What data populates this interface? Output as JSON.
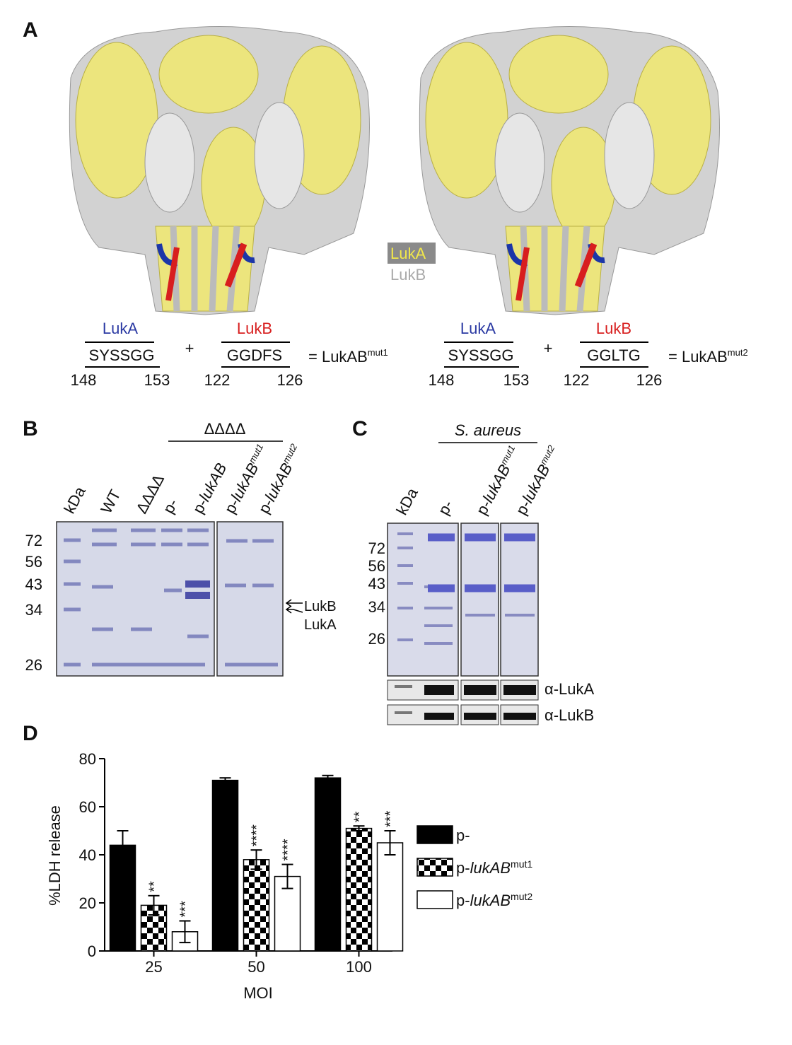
{
  "panel_a": {
    "label": "A",
    "legend": [
      "LukA",
      "LukB"
    ],
    "left": {
      "luka": "LukA",
      "luka_seq": "SYSSGG",
      "luka_start": "148",
      "luka_end": "153",
      "plus": "+",
      "lukb": "LukB",
      "lukb_seq": "GGDFS",
      "lukb_start": "122",
      "lukb_end": "126",
      "result": "= LukAB",
      "result_sup": "mut1"
    },
    "right": {
      "luka": "LukA",
      "luka_seq": "SYSSGG",
      "luka_start": "148",
      "luka_end": "153",
      "plus": "+",
      "lukb": "LukB",
      "lukb_seq": "GGLTG",
      "lukb_start": "122",
      "lukb_end": "126",
      "result": "= LukAB",
      "result_sup": "mut2"
    }
  },
  "panel_b": {
    "label": "B",
    "group_label": "ΔΔΔΔ",
    "lanes": [
      {
        "text": "kDa"
      },
      {
        "text": "WT"
      },
      {
        "text": "ΔΔΔΔ"
      },
      {
        "text": "p-"
      },
      {
        "text": "p-",
        "italic": "lukAB"
      },
      {
        "text": "p-",
        "italic": "lukAB",
        "sup": "mut1"
      },
      {
        "text": "p-",
        "italic": "lukAB",
        "sup": "mut2"
      }
    ],
    "markers": [
      "72",
      "56",
      "43",
      "34",
      "26"
    ],
    "arrows": [
      "LukB",
      "LukA"
    ]
  },
  "panel_c": {
    "label": "C",
    "group_label": "S. aureus",
    "lanes": [
      {
        "text": "kDa"
      },
      {
        "text": "p-"
      },
      {
        "text": "p-",
        "italic": "lukAB",
        "sup": "mut1"
      },
      {
        "text": "p-",
        "italic": "lukAB",
        "sup": "mut2"
      }
    ],
    "markers": [
      "72",
      "56",
      "43",
      "34",
      "26"
    ],
    "blots": [
      "α-LukA",
      "α-LukB"
    ]
  },
  "chart_data": {
    "type": "bar",
    "panel_label": "D",
    "x_label": "MOI",
    "y_label": "%LDH release",
    "categories": [
      "25",
      "50",
      "100"
    ],
    "ylim": [
      0,
      80
    ],
    "yticks": [
      0,
      20,
      40,
      60,
      80
    ],
    "series": [
      {
        "name": "p-",
        "color": "#000000",
        "values": [
          44,
          71,
          72
        ],
        "errors": [
          6,
          1,
          1
        ]
      },
      {
        "name": "p-",
        "name_italic": "lukAB",
        "name_sup": "mut1",
        "color": "#000000",
        "pattern": "checker",
        "values": [
          19,
          38,
          51
        ],
        "errors": [
          4,
          4,
          1
        ],
        "annotations": [
          "**",
          "****",
          "**"
        ]
      },
      {
        "name": "p-",
        "name_italic": "lukAB",
        "name_sup": "mut2",
        "color": "#ffffff",
        "values": [
          8,
          31,
          45
        ],
        "errors": [
          4.5,
          5,
          5
        ],
        "annotations": [
          "***",
          "****",
          "***"
        ]
      }
    ]
  }
}
